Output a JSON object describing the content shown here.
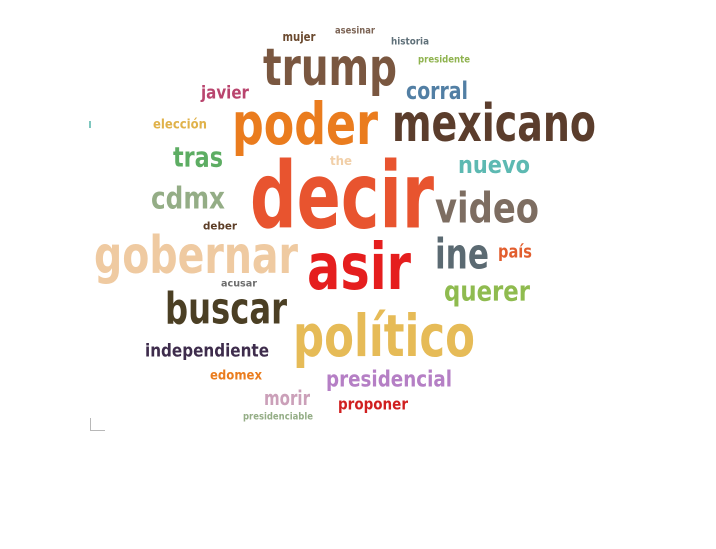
{
  "words": [
    {
      "text": "mujer",
      "color": "#6b4a2f",
      "weight": 12
    },
    {
      "text": "asesinar",
      "color": "#7d6556",
      "weight": 10
    },
    {
      "text": "historia",
      "color": "#5f7079",
      "weight": 10
    },
    {
      "text": "presidente",
      "color": "#8fb34f",
      "weight": 10
    },
    {
      "text": "trump",
      "color": "#7a5740",
      "weight": 52
    },
    {
      "text": "javier",
      "color": "#b9456e",
      "weight": 18
    },
    {
      "text": "corral",
      "color": "#527fa4",
      "weight": 24
    },
    {
      "text": "elección",
      "color": "#e0b24a",
      "weight": 13
    },
    {
      "text": "poder",
      "color": "#ea7c1e",
      "weight": 58
    },
    {
      "text": "mexicano",
      "color": "#5b3d2c",
      "weight": 52
    },
    {
      "text": "tras",
      "color": "#5dad63",
      "weight": 28
    },
    {
      "text": "the",
      "color": "#f1cfa8",
      "weight": 12
    },
    {
      "text": "nuevo",
      "color": "#5db9b2",
      "weight": 24
    },
    {
      "text": "decir",
      "color": "#e8542f",
      "weight": 92
    },
    {
      "text": "cdmx",
      "color": "#94ad86",
      "weight": 30
    },
    {
      "text": "video",
      "color": "#7d6d61",
      "weight": 42
    },
    {
      "text": "deber",
      "color": "#5c3d26",
      "weight": 11
    },
    {
      "text": "gobernar",
      "color": "#efcaa1",
      "weight": 52
    },
    {
      "text": "asir",
      "color": "#e51e1e",
      "weight": 64
    },
    {
      "text": "ine",
      "color": "#5b6a72",
      "weight": 42
    },
    {
      "text": "país",
      "color": "#e25e2e",
      "weight": 18
    },
    {
      "text": "acusar",
      "color": "#6d6d6d",
      "weight": 10
    },
    {
      "text": "querer",
      "color": "#8fbb4f",
      "weight": 28
    },
    {
      "text": "buscar",
      "color": "#4b3f24",
      "weight": 44
    },
    {
      "text": "político",
      "color": "#e6bb57",
      "weight": 58
    },
    {
      "text": "independiente",
      "color": "#3e2c4c",
      "weight": 18
    },
    {
      "text": "edomex",
      "color": "#ea7c1e",
      "weight": 13
    },
    {
      "text": "presidencial",
      "color": "#b57fc5",
      "weight": 22
    },
    {
      "text": "morir",
      "color": "#cba0b9",
      "weight": 20
    },
    {
      "text": "proponer",
      "color": "#d01f1f",
      "weight": 16
    },
    {
      "text": "presidenciable",
      "color": "#94ad86",
      "weight": 10
    }
  ]
}
